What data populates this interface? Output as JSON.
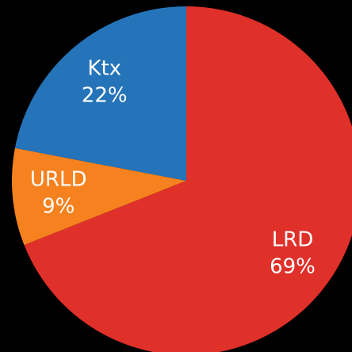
{
  "chart_data": {
    "type": "pie",
    "categories": [
      "LRD",
      "URLD",
      "Ktx"
    ],
    "values": [
      69,
      9,
      22
    ],
    "value_labels": [
      "69%",
      "9%",
      "22%"
    ],
    "colors": [
      "#e0302a",
      "#f5821f",
      "#2574b9"
    ]
  }
}
